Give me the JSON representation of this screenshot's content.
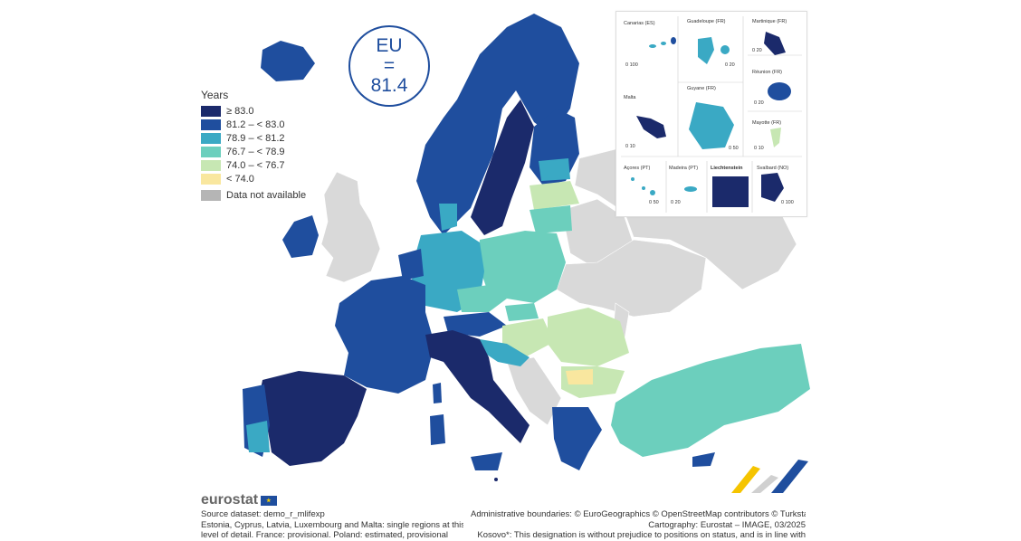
{
  "eu_badge": {
    "label": "EU",
    "eq": "=",
    "value": "81.4"
  },
  "legend": {
    "title": "Years",
    "items": [
      {
        "label": "≥ 83.0",
        "color": "#1b2a6b"
      },
      {
        "label": "81.2 – < 83.0",
        "color": "#1f4e9e"
      },
      {
        "label": "78.9 – < 81.2",
        "color": "#3aa9c4"
      },
      {
        "label": "76.7 – < 78.9",
        "color": "#6ccfbd"
      },
      {
        "label": "74.0 – < 76.7",
        "color": "#c7e7b3"
      },
      {
        "label": "< 74.0",
        "color": "#f9e79f"
      }
    ],
    "na": {
      "label": "Data not available",
      "color": "#b5b5b5"
    }
  },
  "insets": {
    "canarias": {
      "label": "Canarias (ES)",
      "scale": "0  100"
    },
    "guadeloupe": {
      "label": "Guadeloupe (FR)",
      "scale": "0  20"
    },
    "martinique": {
      "label": "Martinique (FR)",
      "scale": "0  20"
    },
    "reunion": {
      "label": "Réunion (FR)",
      "scale": "0  20"
    },
    "malta": {
      "label": "Malta",
      "scale": "0  10"
    },
    "guyane": {
      "label": "Guyane (FR)",
      "scale": "0 50"
    },
    "mayotte": {
      "label": "Mayotte (FR)",
      "scale": "0 10"
    },
    "acores": {
      "label": "Açores (PT)",
      "scale": "0  50"
    },
    "madeira": {
      "label": "Madeira (PT)",
      "scale": "0 20"
    },
    "liechtenstein": {
      "label": "Liechtenstein"
    },
    "svalbard": {
      "label": "Svalbard (NO)",
      "scale": "0 100"
    }
  },
  "footer": {
    "logo": "eurostat",
    "source": "Source dataset: demo_r_mlifexp",
    "note1": "Estonia, Cyprus, Latvia, Luxembourg and Malta: single regions at this",
    "note2": "level of detail. France: provisional. Poland: estimated, provisional",
    "boundaries": "Administrative boundaries: © EuroGeographics © OpenStreetMap contributors © Turkstat",
    "cartography": "Cartography: Eurostat – IMAGE, 03/2025",
    "kosovo": "Kosovo*: This designation is without prejudice to positions on status, and is in line with"
  }
}
